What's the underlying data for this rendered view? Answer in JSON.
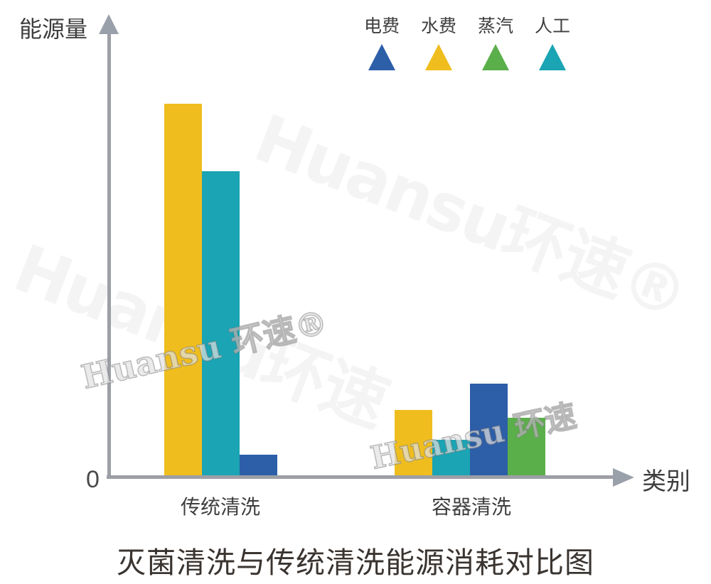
{
  "watermarks": {
    "large_upper": "Huansu环速®",
    "large_lower": "Huansu环速",
    "small_left": "Huansu 环速®",
    "small_right": "Huansu 环速"
  },
  "chart_data": {
    "type": "bar",
    "title": "灭菌清洗与传统清洗能源消耗对比图",
    "xlabel": "类别",
    "ylabel": "能源量",
    "origin_label": "0",
    "categories": [
      "传统清洗",
      "容器清洗"
    ],
    "series": [
      {
        "name": "电费",
        "color": "#2D5EA8",
        "values": [
          6,
          25
        ]
      },
      {
        "name": "水费",
        "color": "#EFBE1E",
        "values": [
          100,
          18
        ]
      },
      {
        "name": "蒸汽",
        "color": "#5BAF4B",
        "values": [
          0,
          16
        ]
      },
      {
        "name": "人工",
        "color": "#1AA4B4",
        "values": [
          82,
          10
        ]
      }
    ],
    "bar_order_within_group": [
      "水费",
      "人工",
      "电费",
      "蒸汽"
    ],
    "ylim": [
      0,
      115
    ],
    "value_units": "relative energy (tallest bar = 100)",
    "grid": false,
    "legend_position": "top-center",
    "axis_color": "#9C9FA6"
  }
}
